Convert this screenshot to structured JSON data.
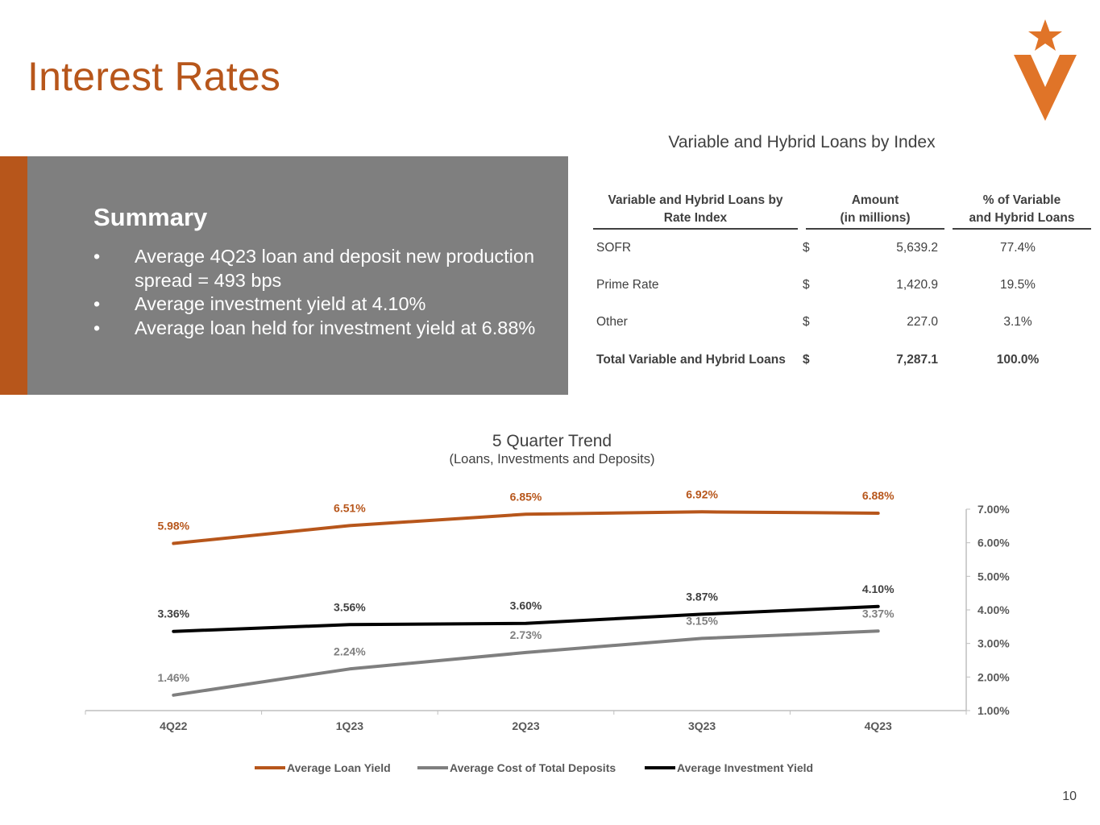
{
  "header": {
    "title": "Interest Rates"
  },
  "logo": {
    "icon": "star-v-logo-icon",
    "color": "#E07428"
  },
  "summary": {
    "heading": "Summary",
    "bullet_char": "•",
    "bullets": [
      "Average 4Q23 loan and deposit new production spread = 493 bps",
      "Average investment yield at 4.10%",
      "Average loan held for investment yield at 6.88%"
    ]
  },
  "loans_table": {
    "title": "Variable and Hybrid Loans by Index",
    "headers": {
      "index_line1": "Variable and Hybrid Loans by",
      "index_line2": "Rate Index",
      "amount_line1": "Amount",
      "amount_line2": "(in millions)",
      "pct_line1": "% of Variable",
      "pct_line2": "and Hybrid Loans"
    },
    "rows": [
      {
        "name": "SOFR",
        "currency": "$",
        "amount": "5,639.2",
        "pct": "77.4%"
      },
      {
        "name": "Prime Rate",
        "currency": "$",
        "amount": "1,420.9",
        "pct": "19.5%"
      },
      {
        "name": "Other",
        "currency": "$",
        "amount": "227.0",
        "pct": "3.1%"
      }
    ],
    "total": {
      "name": "Total Variable and Hybrid Loans",
      "currency": "$",
      "amount": "7,287.1",
      "pct": "100.0%"
    }
  },
  "chart_data": {
    "type": "line",
    "title": "5 Quarter Trend",
    "subtitle": "(Loans, Investments and Deposits)",
    "categories": [
      "4Q22",
      "1Q23",
      "2Q23",
      "3Q23",
      "4Q23"
    ],
    "y_axis_side": "right",
    "ylim": [
      1.0,
      7.0
    ],
    "yticks": [
      "1.00%",
      "2.00%",
      "3.00%",
      "4.00%",
      "5.00%",
      "6.00%",
      "7.00%"
    ],
    "legend_position": "bottom",
    "series": [
      {
        "name": "Average Loan Yield",
        "color": "#B7561B",
        "values": [
          5.98,
          6.51,
          6.85,
          6.92,
          6.88
        ],
        "labels": [
          "5.98%",
          "6.51%",
          "6.85%",
          "6.92%",
          "6.88%"
        ]
      },
      {
        "name": "Average Cost of Total Deposits",
        "color": "#7F7F7F",
        "values": [
          1.46,
          2.24,
          2.73,
          3.15,
          3.37
        ],
        "labels": [
          "1.46%",
          "2.24%",
          "2.73%",
          "3.15%",
          "3.37%"
        ]
      },
      {
        "name": "Average Investment Yield",
        "color": "#000000",
        "values": [
          3.36,
          3.56,
          3.6,
          3.87,
          4.1
        ],
        "labels": [
          "3.36%",
          "3.56%",
          "3.60%",
          "3.87%",
          "4.10%"
        ]
      }
    ]
  },
  "footer": {
    "page_number": "10"
  }
}
